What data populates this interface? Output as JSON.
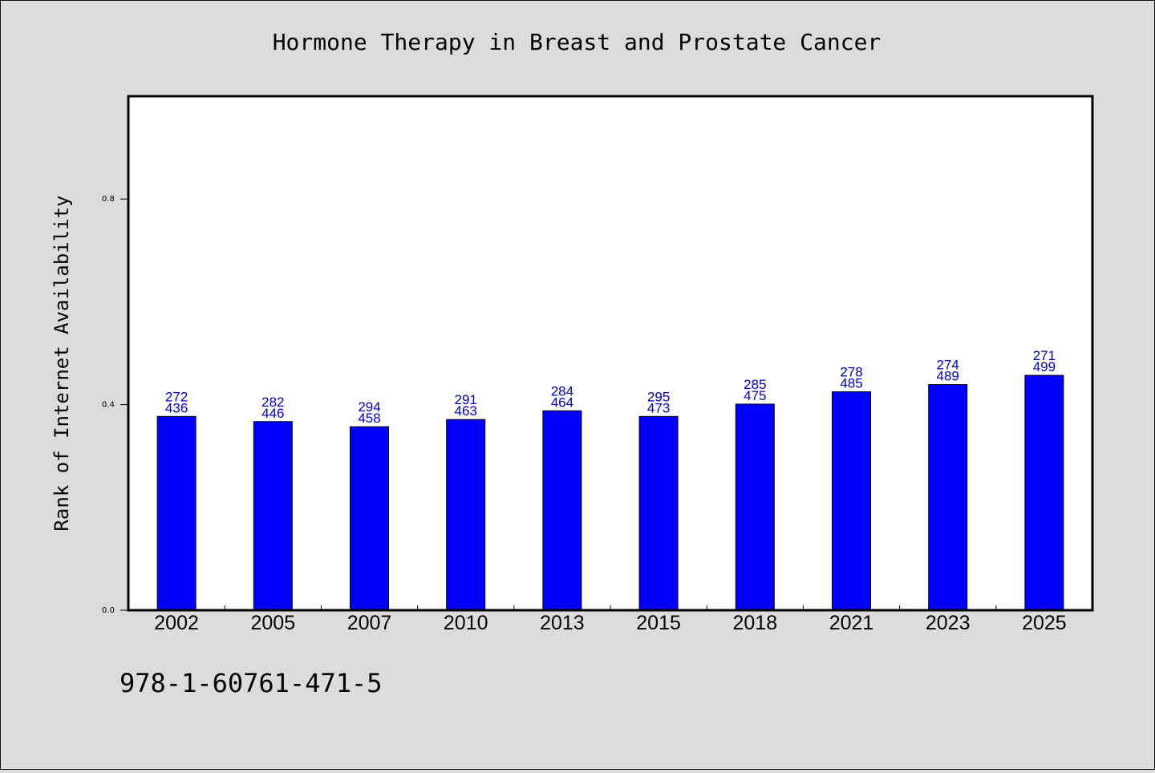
{
  "chart_data": {
    "type": "bar",
    "title": "Hormone Therapy in Breast and Prostate Cancer",
    "xlabel": "",
    "ylabel": "Rank of Internet Availability",
    "categories": [
      "2002",
      "2005",
      "2007",
      "2010",
      "2013",
      "2015",
      "2018",
      "2021",
      "2023",
      "2025"
    ],
    "values": [
      0.377,
      0.367,
      0.357,
      0.371,
      0.388,
      0.377,
      0.401,
      0.425,
      0.439,
      0.457
    ],
    "data_labels": [
      [
        "272",
        "436"
      ],
      [
        "282",
        "446"
      ],
      [
        "294",
        "458"
      ],
      [
        "291",
        "463"
      ],
      [
        "284",
        "464"
      ],
      [
        "295",
        "473"
      ],
      [
        "285",
        "475"
      ],
      [
        "278",
        "485"
      ],
      [
        "274",
        "489"
      ],
      [
        "271",
        "499"
      ]
    ],
    "yticks": [
      "0.0",
      "0.4",
      "0.8"
    ],
    "ylim": [
      0,
      1.0
    ],
    "grid": false,
    "bar_color": "#0000ff",
    "label_color": "#0000cc",
    "background": "#dcdcdc"
  },
  "footer_text": "978-1-60761-471-5"
}
